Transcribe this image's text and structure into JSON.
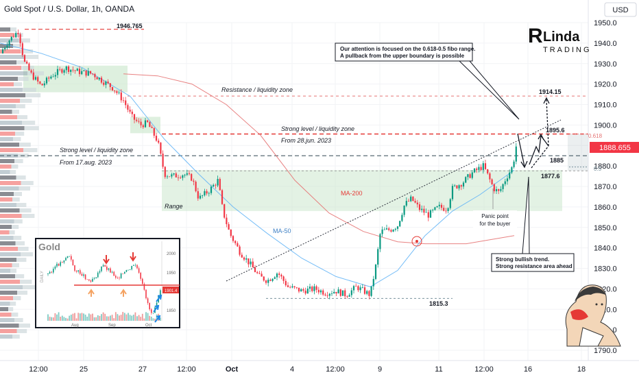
{
  "header": {
    "title": "Gold Spot / U.S. Dollar, 1h, OANDA",
    "currency": "USD"
  },
  "logo": {
    "text_top": "Linda",
    "text_bottom": "TRADING"
  },
  "colors": {
    "up": "#089981",
    "down": "#f23645",
    "ma200": "#e57373",
    "ma50": "#64b5f6",
    "zone": "#c8e6c9",
    "level": "#e53935",
    "level_dark": "#455a64",
    "price_tag": "#f23645"
  },
  "chart_data": {
    "type": "candlestick",
    "ylim": [
      1790,
      1955
    ],
    "y_ticks": [
      1790,
      1800,
      1810,
      1820,
      1830,
      1840,
      1850,
      1860,
      1870,
      1880,
      1890,
      1900,
      1910,
      1920,
      1930,
      1940,
      1950
    ],
    "x_ticks": [
      "12:00",
      "25",
      "27",
      "12:00",
      "Oct",
      "4",
      "12:00",
      "9",
      "11",
      "12:00",
      "16",
      "18"
    ],
    "price_path": [
      [
        0,
        1935
      ],
      [
        12,
        1941
      ],
      [
        27,
        1946
      ],
      [
        35,
        1931
      ],
      [
        45,
        1925
      ],
      [
        60,
        1919
      ],
      [
        75,
        1924
      ],
      [
        95,
        1928
      ],
      [
        115,
        1926
      ],
      [
        135,
        1925
      ],
      [
        152,
        1921
      ],
      [
        165,
        1918
      ],
      [
        180,
        1912
      ],
      [
        192,
        1904
      ],
      [
        205,
        1900
      ],
      [
        215,
        1901
      ],
      [
        230,
        1892
      ],
      [
        240,
        1876
      ],
      [
        252,
        1875
      ],
      [
        268,
        1876
      ],
      [
        280,
        1874
      ],
      [
        290,
        1864
      ],
      [
        305,
        1868
      ],
      [
        318,
        1873
      ],
      [
        325,
        1858
      ],
      [
        335,
        1847
      ],
      [
        350,
        1838
      ],
      [
        365,
        1832
      ],
      [
        378,
        1826
      ],
      [
        390,
        1824
      ],
      [
        405,
        1828
      ],
      [
        420,
        1821
      ],
      [
        440,
        1819
      ],
      [
        460,
        1820
      ],
      [
        475,
        1818
      ],
      [
        490,
        1819
      ],
      [
        505,
        1817
      ],
      [
        520,
        1821
      ],
      [
        530,
        1819
      ],
      [
        540,
        1817
      ],
      [
        548,
        1831
      ],
      [
        555,
        1848
      ],
      [
        570,
        1849
      ],
      [
        580,
        1851
      ],
      [
        590,
        1861
      ],
      [
        600,
        1864
      ],
      [
        612,
        1859
      ],
      [
        625,
        1856
      ],
      [
        640,
        1860
      ],
      [
        652,
        1859
      ],
      [
        660,
        1869
      ],
      [
        675,
        1872
      ],
      [
        690,
        1877
      ],
      [
        705,
        1880
      ],
      [
        712,
        1875
      ],
      [
        720,
        1869
      ],
      [
        728,
        1867
      ],
      [
        738,
        1874
      ],
      [
        748,
        1880
      ],
      [
        755,
        1894
      ]
    ],
    "ma200": [
      [
        180,
        1925
      ],
      [
        230,
        1924
      ],
      [
        280,
        1920
      ],
      [
        330,
        1910
      ],
      [
        380,
        1895
      ],
      [
        430,
        1873
      ],
      [
        480,
        1857
      ],
      [
        530,
        1848
      ],
      [
        580,
        1843
      ],
      [
        620,
        1842
      ],
      [
        680,
        1842
      ],
      [
        750,
        1846
      ]
    ],
    "ma50": [
      [
        0,
        1940
      ],
      [
        60,
        1935
      ],
      [
        120,
        1928
      ],
      [
        190,
        1914
      ],
      [
        240,
        1893
      ],
      [
        290,
        1876
      ],
      [
        340,
        1860
      ],
      [
        390,
        1847
      ],
      [
        440,
        1835
      ],
      [
        490,
        1826
      ],
      [
        540,
        1821
      ],
      [
        580,
        1829
      ],
      [
        620,
        1846
      ],
      [
        660,
        1858
      ],
      [
        700,
        1866
      ],
      [
        750,
        1878
      ]
    ],
    "annotations": {
      "high_label": "1946.765",
      "resistance_label": "Resistance / liquidity zone",
      "strong_level_1": "Strong level / liquidity zone",
      "strong_level_1_from": "From 28.jun. 2023",
      "strong_level_2": "Strong level / liquidity zone",
      "strong_level_2_from": "From 17.aug. 2023",
      "range_label": "Range",
      "ma200_label": "MA-200",
      "ma50_label": "MA-50",
      "low_label": "1815.3",
      "level_1914": "1914.15",
      "level_1895": "1895.6",
      "level_1885": "1885",
      "level_1877": "1877.6",
      "fib_0618": "0.618",
      "fib_05": "0.5",
      "current_price": "1888.655",
      "callout_top_line1": "Our attention is focused on the 0.618-0.5 fibo range.",
      "callout_top_line2": "A pullback from the upper boundary is possible",
      "callout_panic_line1": "Panic point",
      "callout_panic_line2": "for the buyer",
      "callout_bottom_line1": "Strong bullish trend.",
      "callout_bottom_line2": "Strong resistance area ahead"
    },
    "inset": {
      "title": "Gold",
      "side_label": "DAILY",
      "price_label": "1901.4",
      "x_ticks": [
        "Aug",
        "Sep",
        "Oct"
      ],
      "y_ticks": [
        "2000",
        "1950",
        "1850"
      ]
    }
  }
}
